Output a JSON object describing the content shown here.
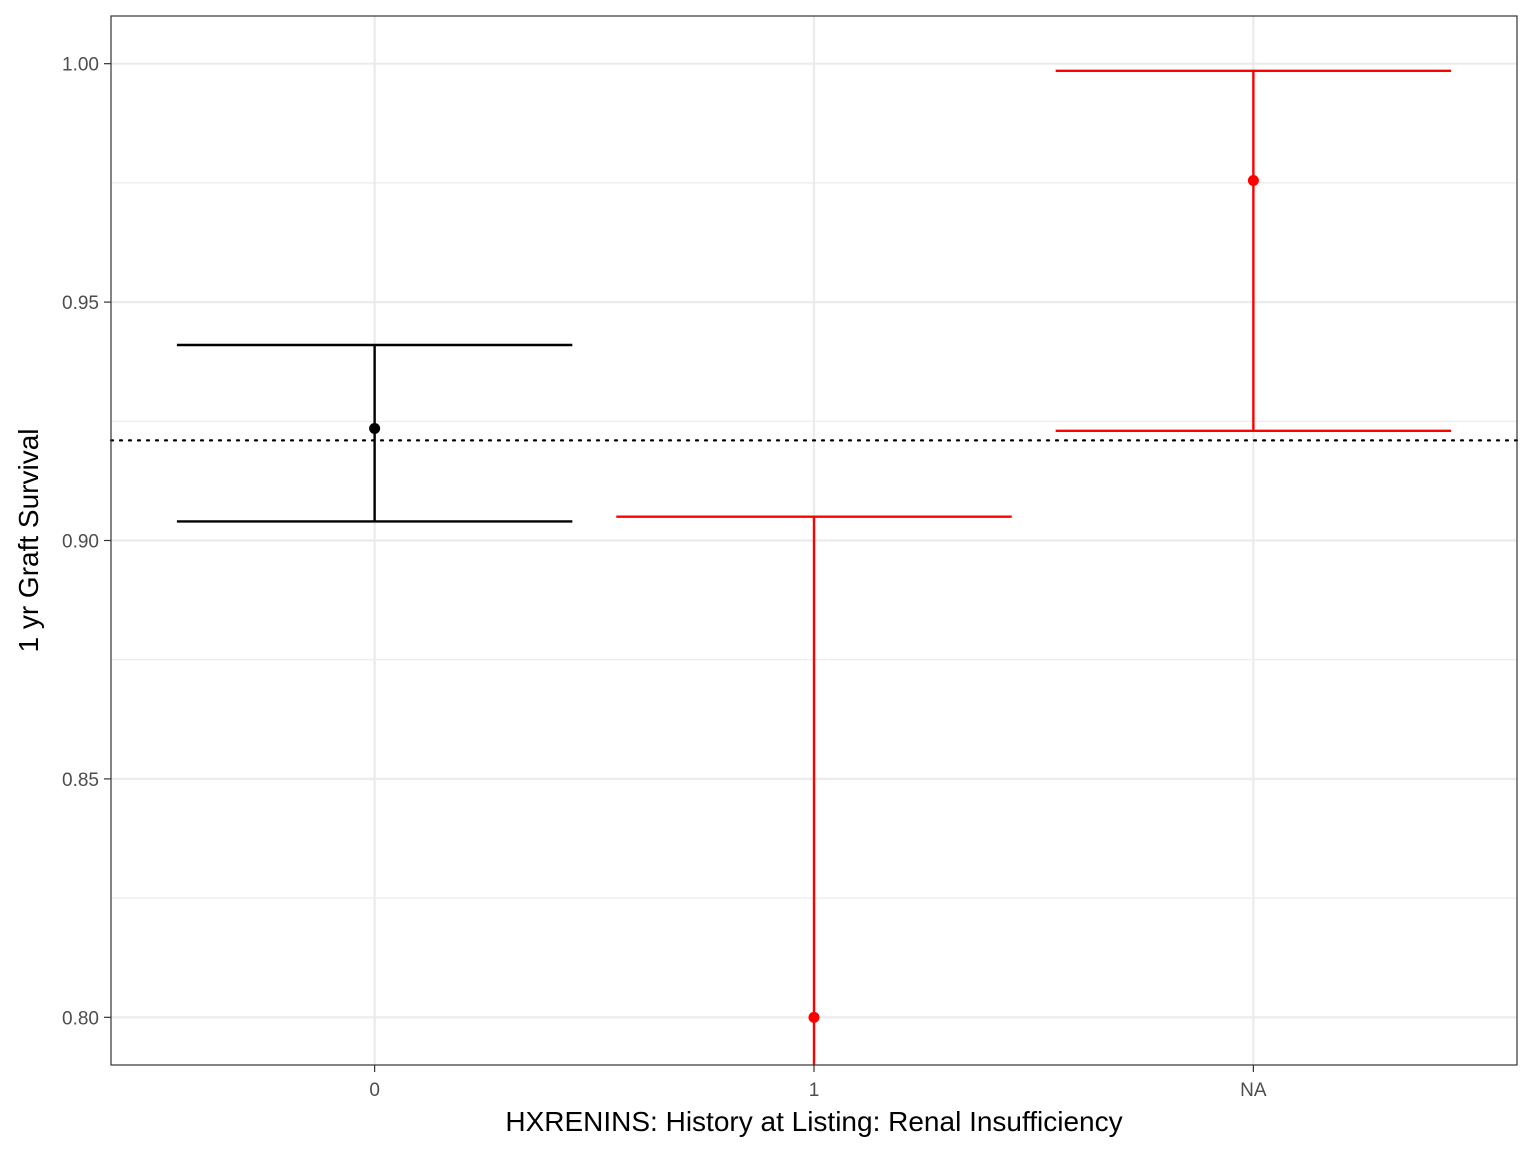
{
  "chart_data": {
    "type": "errorbar",
    "xlabel": "HXRENINS: History at Listing: Renal Insufficiency",
    "ylabel": "1 yr Graft Survival",
    "categories": [
      "0",
      "1",
      "NA"
    ],
    "ylim": [
      0.79,
      1.01
    ],
    "y_ticks": [
      "0.80",
      "0.85",
      "0.90",
      "0.95",
      "1.00"
    ],
    "y_tick_values": [
      0.8,
      0.85,
      0.9,
      0.95,
      1.0
    ],
    "reference_line": 0.921,
    "grid": true,
    "points": [
      {
        "category": "0",
        "estimate": 0.9235,
        "lower": 0.904,
        "upper": 0.941,
        "color": "#000000"
      },
      {
        "category": "1",
        "estimate": 0.8,
        "lower": 0.789,
        "upper": 0.905,
        "color": "#ff0000"
      },
      {
        "category": "NA",
        "estimate": 0.9755,
        "lower": 0.923,
        "upper": 0.9985,
        "color": "#ff0000"
      }
    ]
  }
}
